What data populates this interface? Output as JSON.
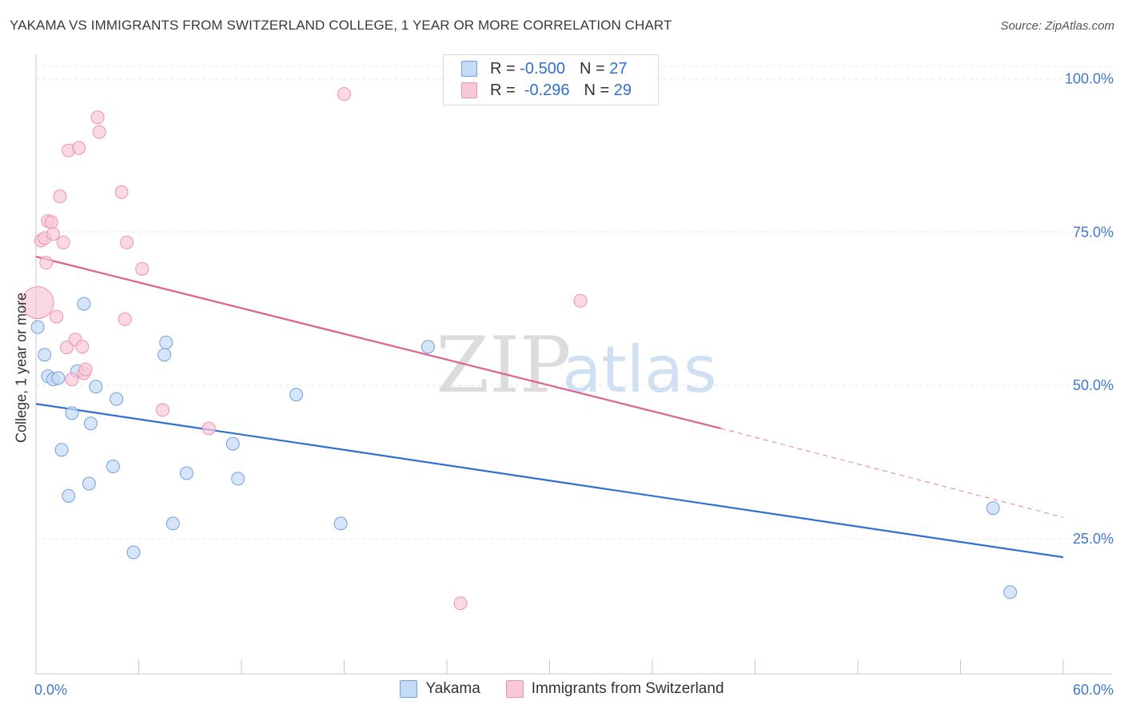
{
  "header": {
    "title": "YAKAMA VS IMMIGRANTS FROM SWITZERLAND COLLEGE, 1 YEAR OR MORE CORRELATION CHART",
    "source": "Source: ZipAtlas.com"
  },
  "watermark": {
    "zip": "ZIP",
    "atlas": "atlas"
  },
  "legend": {
    "r_label": "R =",
    "n_label": "N =",
    "rows": [
      {
        "r": "-0.500",
        "n": "27"
      },
      {
        "r": "-0.296",
        "n": "29"
      }
    ]
  },
  "chart_data": {
    "type": "scatter",
    "title": "YAKAMA VS IMMIGRANTS FROM SWITZERLAND COLLEGE, 1 YEAR OR MORE CORRELATION CHART",
    "ylabel": "College, 1 year or more",
    "xlim": [
      0,
      60
    ],
    "ylim": [
      3,
      105
    ],
    "x_tick_labels": [
      "0.0%",
      "60.0%"
    ],
    "y_ticks": [
      25,
      50,
      75,
      100
    ],
    "y_tick_labels": [
      "25.0%",
      "50.0%",
      "75.0%",
      "100.0%"
    ],
    "grid": true,
    "legend_position": "top-center",
    "series": [
      {
        "name": "Yakama",
        "color": "#6fa0e0",
        "fill": "#c5daf5",
        "line_color": "#2f6fd0",
        "points": [
          [
            0.1,
            59.5
          ],
          [
            0.5,
            55.0
          ],
          [
            0.7,
            51.5
          ],
          [
            1.0,
            51.0
          ],
          [
            1.3,
            51.2
          ],
          [
            1.5,
            39.5
          ],
          [
            1.9,
            32.0
          ],
          [
            2.1,
            45.5
          ],
          [
            2.4,
            52.3
          ],
          [
            2.8,
            63.3
          ],
          [
            3.1,
            34.0
          ],
          [
            3.2,
            43.8
          ],
          [
            3.5,
            49.8
          ],
          [
            4.5,
            36.8
          ],
          [
            4.7,
            47.8
          ],
          [
            5.7,
            22.8
          ],
          [
            7.5,
            55.0
          ],
          [
            7.6,
            57.0
          ],
          [
            8.0,
            27.5
          ],
          [
            8.8,
            35.7
          ],
          [
            11.5,
            40.5
          ],
          [
            11.8,
            34.8
          ],
          [
            15.2,
            48.5
          ],
          [
            17.8,
            27.5
          ],
          [
            22.9,
            56.3
          ],
          [
            55.9,
            30.0
          ],
          [
            56.9,
            16.3
          ]
        ],
        "trend": {
          "x": [
            0,
            60
          ],
          "y": [
            47.0,
            22.0
          ]
        }
      },
      {
        "name": "Immigrants from Switzerland",
        "color": "#f090b0",
        "fill": "#f8c8d8",
        "line_color": "#e06090",
        "points": [
          [
            0.1,
            63.5
          ],
          [
            0.3,
            73.6
          ],
          [
            0.5,
            74.0
          ],
          [
            0.6,
            70.0
          ],
          [
            0.7,
            76.8
          ],
          [
            0.9,
            76.6
          ],
          [
            1.0,
            74.7
          ],
          [
            1.2,
            61.2
          ],
          [
            1.4,
            80.8
          ],
          [
            1.6,
            73.3
          ],
          [
            1.8,
            56.2
          ],
          [
            1.9,
            88.3
          ],
          [
            2.1,
            51.0
          ],
          [
            2.3,
            57.5
          ],
          [
            2.5,
            88.7
          ],
          [
            2.7,
            56.3
          ],
          [
            2.8,
            52.0
          ],
          [
            2.9,
            52.6
          ],
          [
            3.6,
            93.7
          ],
          [
            3.7,
            91.3
          ],
          [
            5.0,
            81.5
          ],
          [
            5.2,
            60.8
          ],
          [
            5.3,
            73.3
          ],
          [
            6.2,
            69.0
          ],
          [
            7.4,
            46.0
          ],
          [
            10.1,
            43.0
          ],
          [
            18.0,
            97.5
          ],
          [
            24.8,
            14.5
          ],
          [
            31.8,
            63.8
          ]
        ],
        "trend": {
          "x": [
            0,
            40
          ],
          "y": [
            71.0,
            43.0
          ]
        },
        "trend_dashed": {
          "x": [
            40,
            60
          ],
          "y": [
            43.0,
            28.5
          ]
        }
      }
    ]
  }
}
